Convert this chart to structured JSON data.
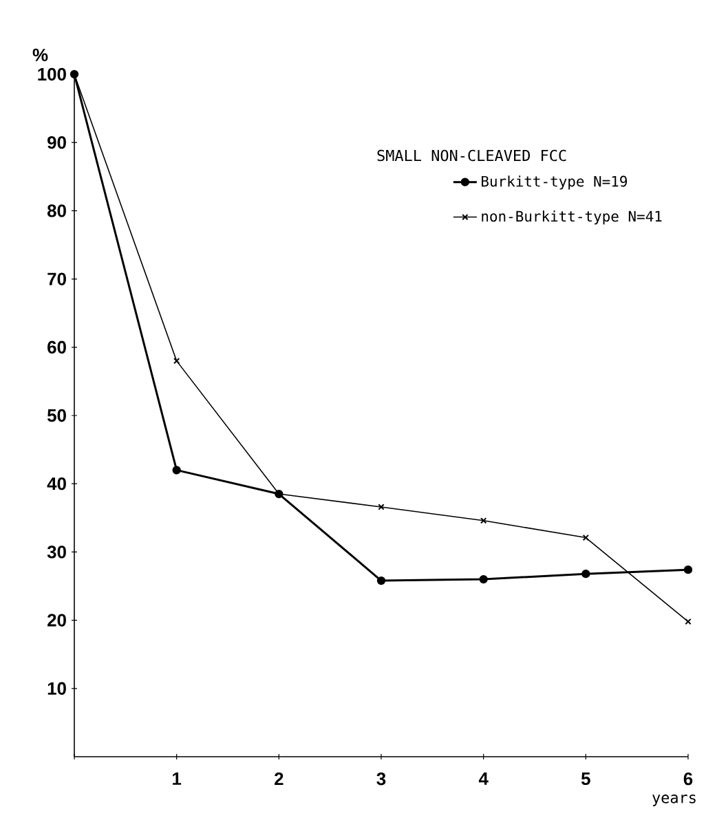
{
  "chart_data": {
    "type": "line",
    "ylabel": "%",
    "xlabel": "years",
    "legend_title": "SMALL   NON-CLEAVED   FCC",
    "legend": "top right",
    "x": [
      0,
      1,
      2,
      3,
      4,
      5,
      6
    ],
    "xlim": [
      0,
      6
    ],
    "xticks": [
      {
        "value": 0,
        "label": null
      },
      1,
      2,
      3,
      4,
      5,
      6
    ],
    "ylim": [
      0,
      100
    ],
    "yticks": [
      10,
      20,
      30,
      40,
      50,
      60,
      70,
      80,
      90,
      100
    ],
    "series": [
      {
        "name": "Burkitt-type   N=19",
        "color": "#000000",
        "marker": "circle",
        "values": [
          100,
          42,
          38.5,
          25.8,
          26,
          26.8,
          27.4
        ]
      },
      {
        "name": "non-Burkitt-type   N=41",
        "color": "#000000",
        "marker": "cross",
        "values": [
          100,
          58,
          38.5,
          36.6,
          34.6,
          32.1,
          19.8
        ]
      }
    ]
  }
}
